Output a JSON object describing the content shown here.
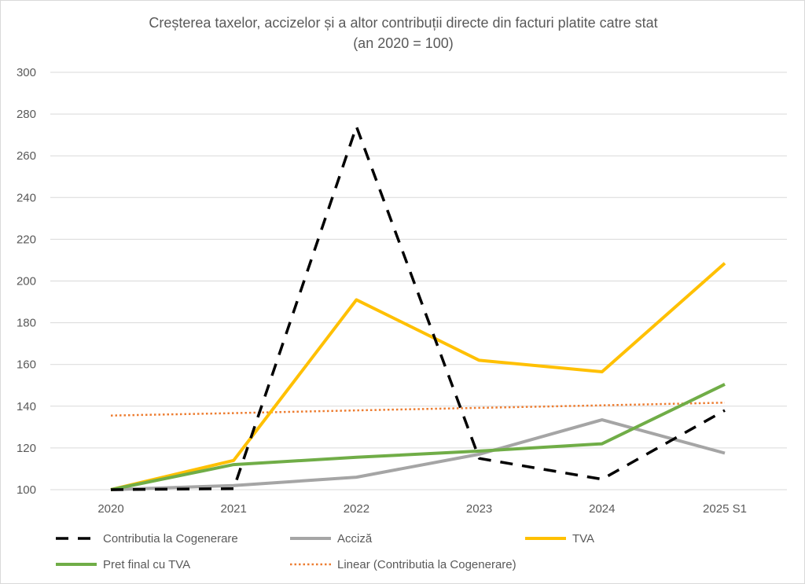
{
  "chart_data": {
    "type": "line",
    "title": "Creșterea taxelor, accizelor și a altor contribuții directe din facturi platite catre stat",
    "subtitle": "(an 2020 = 100)",
    "categories": [
      "2020",
      "2021",
      "2022",
      "2023",
      "2024",
      "2025 S1"
    ],
    "ylim": [
      100,
      300
    ],
    "yticks": [
      100,
      120,
      140,
      160,
      180,
      200,
      220,
      240,
      260,
      280,
      300
    ],
    "grid": true,
    "legend_position": "bottom",
    "series": [
      {
        "name": "Contributia la Cogenerare",
        "values": [
          100,
          100.5,
          274,
          115,
          105,
          138
        ],
        "color": "#000000",
        "style": "dashed"
      },
      {
        "name": "Acciză",
        "values": [
          100,
          102,
          106,
          117,
          133.5,
          117.5
        ],
        "color": "#a5a5a5",
        "style": "solid"
      },
      {
        "name": "TVA",
        "values": [
          100,
          114,
          191,
          162,
          156.5,
          208.5
        ],
        "color": "#ffc000",
        "style": "solid"
      },
      {
        "name": "Pret final cu TVA",
        "values": [
          100,
          112,
          115.5,
          118.5,
          122,
          150.5
        ],
        "color": "#70ad47",
        "style": "solid"
      },
      {
        "name": "Linear (Contributia la Cogenerare)",
        "values": [
          135.5,
          136.7,
          138,
          139.2,
          140.4,
          141.7
        ],
        "color": "#ed7d31",
        "style": "dotted"
      }
    ]
  }
}
